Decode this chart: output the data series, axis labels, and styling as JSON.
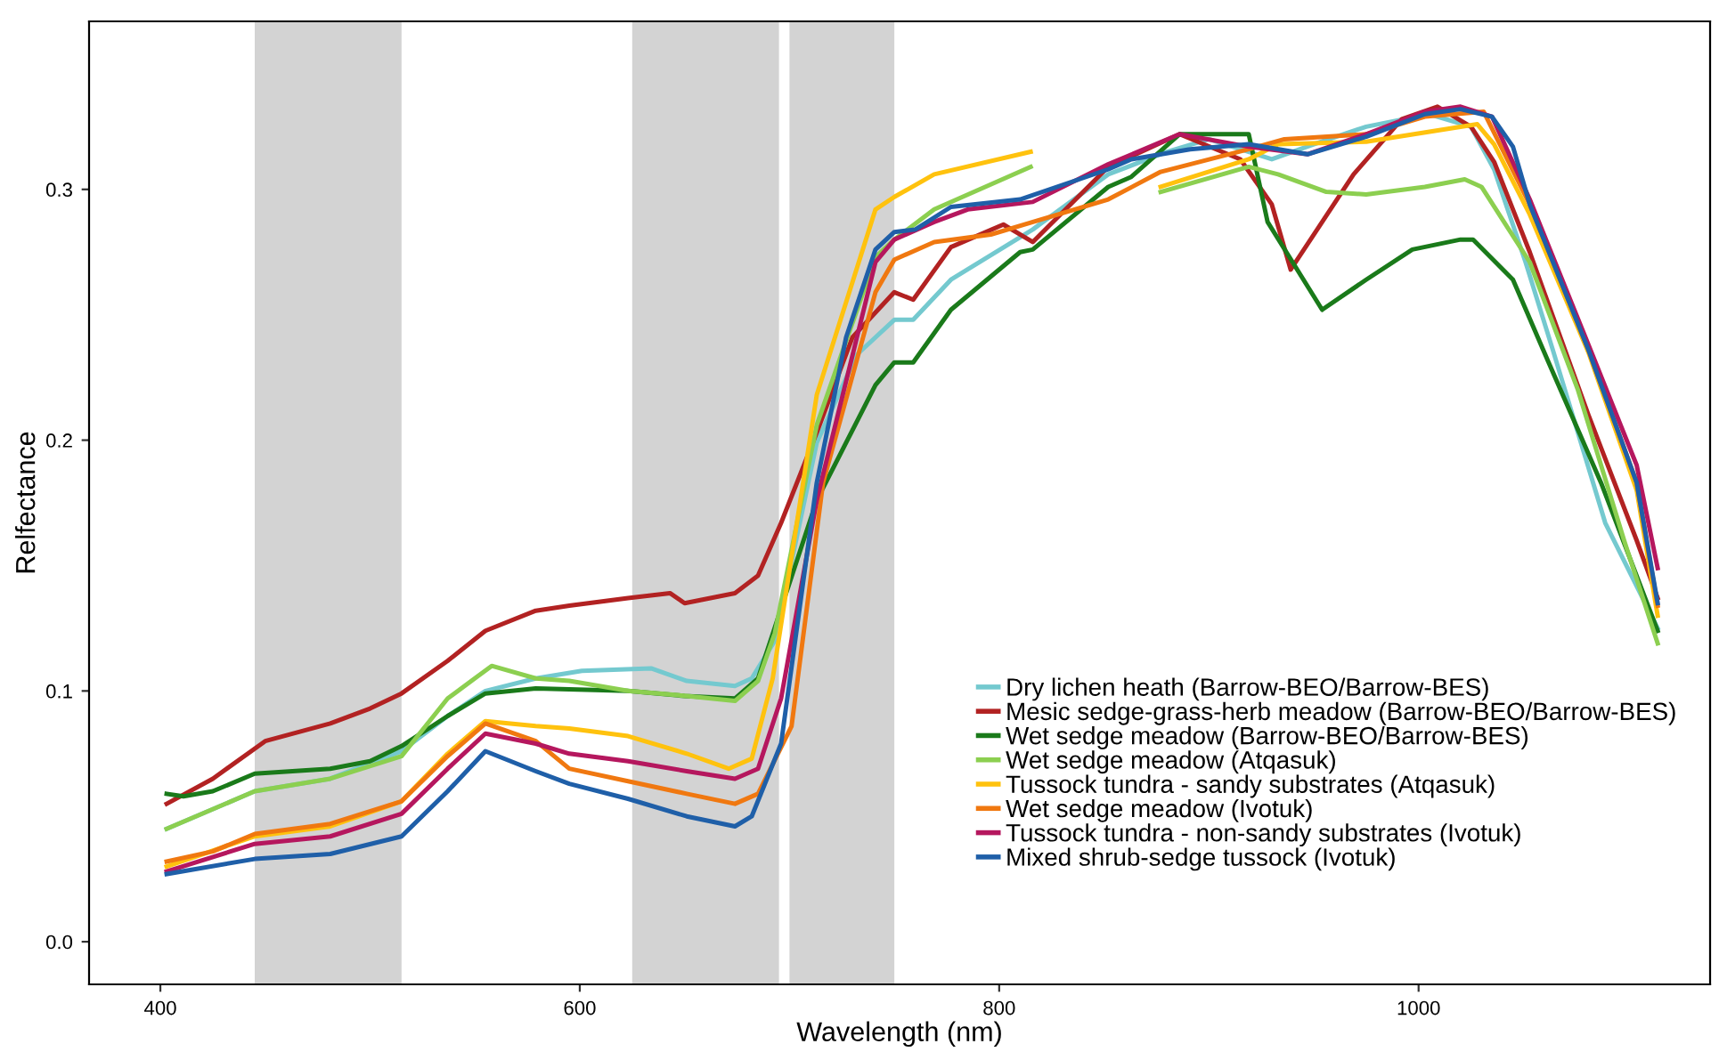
{
  "chart_data": {
    "type": "line",
    "xlabel": "Wavelength (nm)",
    "ylabel": "Relfectance",
    "xlim": [
      366,
      1139
    ],
    "ylim": [
      -0.017,
      0.367
    ],
    "xticks": [
      400,
      600,
      800,
      1000
    ],
    "yticks": [
      {
        "value": 0,
        "label": "0.0"
      },
      {
        "value": 0.1,
        "label": "0.1"
      },
      {
        "value": 0.2,
        "label": "0.2"
      },
      {
        "value": 0.3,
        "label": "0.3"
      }
    ],
    "grid": false,
    "legend": "bottom right",
    "line_style": "solid",
    "marker": "none",
    "bands": [
      {
        "axis": "x",
        "from": 445,
        "to": 515,
        "color": "#d3d3d3"
      },
      {
        "axis": "x",
        "from": 625,
        "to": 695,
        "color": "#d3d3d3"
      },
      {
        "axis": "x",
        "from": 700,
        "to": 750,
        "color": "#d3d3d3"
      }
    ],
    "series": [
      {
        "name": "Dry lichen heath (Barrow-BEO/Barrow-BES)",
        "color": "#74c9cf",
        "x": [
          403,
          445,
          481,
          515,
          537,
          555,
          579,
          601,
          634,
          651,
          674,
          682,
          693,
          713,
          732,
          750,
          759,
          777,
          816,
          852,
          880,
          900,
          930,
          950,
          975,
          1005,
          1025,
          1036,
          1051,
          1064,
          1089,
          1114
        ],
        "values": [
          0.045,
          0.06,
          0.065,
          0.076,
          0.09,
          0.1,
          0.105,
          0.108,
          0.109,
          0.104,
          0.102,
          0.105,
          0.12,
          0.199,
          0.234,
          0.248,
          0.248,
          0.264,
          0.284,
          0.306,
          0.315,
          0.32,
          0.312,
          0.318,
          0.325,
          0.33,
          0.325,
          0.308,
          0.271,
          0.236,
          0.167,
          0.125
        ]
      },
      {
        "name": "Mesic sedge-grass-herb meadow (Barrow-BEO/Barrow-BES)",
        "color": "#b22222",
        "x": [
          403,
          425,
          450,
          481,
          500,
          515,
          537,
          555,
          579,
          595,
          623,
          643,
          650,
          674,
          685,
          696,
          713,
          730,
          750,
          759,
          777,
          802,
          816,
          852,
          886,
          915,
          930,
          939,
          969,
          992,
          1009,
          1025,
          1036,
          1053,
          1081,
          1104,
          1114
        ],
        "values": [
          0.055,
          0.065,
          0.08,
          0.087,
          0.093,
          0.099,
          0.112,
          0.124,
          0.132,
          0.134,
          0.137,
          0.139,
          0.135,
          0.139,
          0.146,
          0.167,
          0.203,
          0.241,
          0.259,
          0.256,
          0.277,
          0.286,
          0.279,
          0.309,
          0.322,
          0.312,
          0.294,
          0.268,
          0.306,
          0.328,
          0.333,
          0.325,
          0.311,
          0.275,
          0.21,
          0.16,
          0.137
        ]
      },
      {
        "name": "Wet sedge meadow (Barrow-BEO/Barrow-BES)",
        "color": "#1a7a1a",
        "x": [
          403,
          411,
          425,
          445,
          481,
          500,
          515,
          537,
          555,
          579,
          623,
          650,
          674,
          685,
          713,
          741,
          750,
          759,
          777,
          810,
          816,
          852,
          863,
          886,
          919,
          928,
          954,
          975,
          997,
          1020,
          1026,
          1045,
          1062,
          1087,
          1114
        ],
        "values": [
          0.059,
          0.058,
          0.06,
          0.067,
          0.069,
          0.072,
          0.078,
          0.09,
          0.099,
          0.101,
          0.1,
          0.098,
          0.097,
          0.105,
          0.176,
          0.222,
          0.231,
          0.231,
          0.252,
          0.275,
          0.276,
          0.301,
          0.305,
          0.322,
          0.322,
          0.287,
          0.252,
          0.264,
          0.276,
          0.28,
          0.28,
          0.264,
          0.231,
          0.183,
          0.124
        ]
      },
      {
        "name": "Wet sedge meadow (Atqasuk)",
        "color": "#8ccf50",
        "x": [
          403,
          445,
          481,
          515,
          537,
          558,
          579,
          595,
          623,
          651,
          674,
          685,
          693,
          713,
          741,
          750,
          769,
          815,
          850,
          877,
          919,
          933,
          956,
          975,
          1003,
          1022,
          1030,
          1053,
          1076,
          1098,
          1114
        ],
        "values": [
          0.045,
          0.06,
          0.065,
          0.074,
          0.097,
          0.11,
          0.105,
          0.104,
          0.1,
          0.098,
          0.096,
          0.104,
          0.123,
          0.206,
          0.273,
          0.28,
          0.292,
          0.309,
          null,
          0.299,
          0.309,
          0.306,
          0.299,
          0.298,
          0.301,
          0.304,
          0.301,
          0.271,
          0.22,
          0.16,
          0.119
        ]
      },
      {
        "name": "Tussock tundra - sandy substrates (Atqasuk)",
        "color": "#ffc20e",
        "x": [
          403,
          445,
          481,
          515,
          537,
          555,
          579,
          595,
          623,
          651,
          671,
          682,
          692,
          713,
          741,
          750,
          769,
          815,
          850,
          877,
          919,
          933,
          975,
          1028,
          1036,
          1053,
          1081,
          1104,
          1114
        ],
        "values": [
          0.03,
          0.042,
          0.046,
          0.056,
          0.075,
          0.088,
          0.086,
          0.085,
          0.082,
          0.075,
          0.069,
          0.073,
          0.105,
          0.218,
          0.292,
          0.297,
          0.306,
          0.315,
          null,
          0.301,
          0.312,
          0.318,
          0.319,
          0.326,
          0.318,
          0.29,
          0.235,
          0.18,
          0.13
        ]
      },
      {
        "name": "Wet sedge meadow (Ivotuk)",
        "color": "#f07810",
        "x": [
          403,
          425,
          445,
          481,
          515,
          537,
          555,
          579,
          595,
          623,
          651,
          674,
          685,
          701,
          716,
          741,
          750,
          769,
          796,
          852,
          877,
          919,
          936,
          975,
          1003,
          1031,
          1053,
          1081,
          1104,
          1114
        ],
        "values": [
          0.032,
          0.036,
          0.043,
          0.047,
          0.056,
          0.074,
          0.087,
          0.08,
          0.069,
          0.064,
          0.059,
          0.055,
          0.059,
          0.086,
          0.183,
          0.259,
          0.272,
          0.279,
          0.282,
          0.296,
          0.307,
          0.316,
          0.32,
          0.322,
          0.329,
          0.331,
          0.294,
          0.236,
          0.183,
          0.134
        ]
      },
      {
        "name": "Tussock tundra - non-sandy substrates (Ivotuk)",
        "color": "#b5175e",
        "x": [
          403,
          445,
          481,
          515,
          537,
          555,
          579,
          595,
          623,
          651,
          674,
          685,
          696,
          713,
          741,
          750,
          769,
          785,
          816,
          852,
          886,
          919,
          947,
          975,
          1003,
          1020,
          1035,
          1053,
          1081,
          1104,
          1114
        ],
        "values": [
          0.028,
          0.039,
          0.042,
          0.051,
          0.069,
          0.083,
          0.079,
          0.075,
          0.072,
          0.068,
          0.065,
          0.069,
          0.097,
          0.176,
          0.271,
          0.28,
          0.287,
          0.292,
          0.295,
          0.31,
          0.322,
          0.317,
          0.314,
          0.322,
          0.331,
          0.333,
          0.329,
          0.296,
          0.238,
          0.19,
          0.149
        ]
      },
      {
        "name": "Mixed shrub-sedge tussock (Ivotuk)",
        "color": "#1f5fa8",
        "x": [
          403,
          445,
          481,
          515,
          537,
          555,
          579,
          595,
          623,
          651,
          674,
          682,
          696,
          713,
          727,
          741,
          750,
          760,
          777,
          810,
          852,
          863,
          891,
          919,
          947,
          975,
          1003,
          1020,
          1035,
          1045,
          1053,
          1081,
          1104,
          1114
        ],
        "values": [
          0.027,
          0.033,
          0.035,
          0.042,
          0.06,
          0.076,
          0.068,
          0.063,
          0.057,
          0.05,
          0.046,
          0.05,
          0.079,
          0.183,
          0.241,
          0.276,
          0.283,
          0.284,
          0.293,
          0.296,
          0.308,
          0.312,
          0.316,
          0.318,
          0.314,
          0.321,
          0.33,
          0.332,
          0.329,
          0.317,
          0.294,
          0.236,
          0.183,
          0.135
        ]
      }
    ]
  }
}
